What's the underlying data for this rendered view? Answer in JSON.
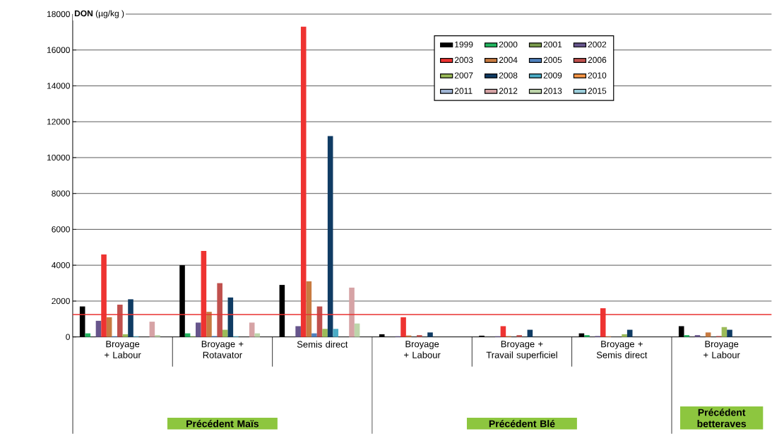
{
  "chart_data": {
    "type": "bar",
    "ylabel": "**DON** (µg/kg )",
    "categories": [
      "Broyage + Labour",
      "Broyage + Rotavator",
      "Semis direct",
      "Broyage + Labour",
      "Broyage + Travail superficiel",
      "Broyage + Semis direct",
      "Broyage + Labour"
    ],
    "annotations": [
      "Précédent Maïs",
      "Précédent Blé",
      "Précédent betteraves"
    ],
    "series": [
      {
        "name": "1999",
        "color": "#000000",
        "values": [
          1700,
          4000,
          2900,
          150,
          70,
          200,
          600
        ]
      },
      {
        "name": "2000",
        "color": "#22b35e",
        "values": [
          200,
          200,
          0,
          0,
          0,
          100,
          100
        ]
      },
      {
        "name": "2001",
        "color": "#77984a",
        "values": [
          0,
          40,
          0,
          0,
          0,
          0,
          0
        ]
      },
      {
        "name": "2002",
        "color": "#67558c",
        "values": [
          900,
          800,
          600,
          40,
          40,
          50,
          100
        ]
      },
      {
        "name": "2003",
        "color": "#ee3331",
        "values": [
          4600,
          4800,
          17300,
          1100,
          600,
          1600,
          0
        ]
      },
      {
        "name": "2004",
        "color": "#c87b41",
        "values": [
          1100,
          1400,
          3100,
          80,
          50,
          40,
          250
        ]
      },
      {
        "name": "2005",
        "color": "#4f81bd",
        "values": [
          40,
          50,
          200,
          0,
          0,
          0,
          0
        ]
      },
      {
        "name": "2006",
        "color": "#c0504d",
        "values": [
          1800,
          3000,
          1700,
          100,
          100,
          0,
          50
        ]
      },
      {
        "name": "2007",
        "color": "#9bbb59",
        "values": [
          150,
          400,
          450,
          0,
          0,
          150,
          550
        ]
      },
      {
        "name": "2008",
        "color": "#0f3b63",
        "values": [
          2100,
          2200,
          11200,
          250,
          400,
          400,
          400
        ]
      },
      {
        "name": "2009",
        "color": "#4bacc6",
        "values": [
          40,
          40,
          450,
          0,
          0,
          0,
          0
        ]
      },
      {
        "name": "2010",
        "color": "#f79646",
        "values": [
          0,
          0,
          0,
          0,
          0,
          0,
          0
        ]
      },
      {
        "name": "2011",
        "color": "#9fb5d4",
        "values": [
          0,
          0,
          0,
          0,
          0,
          0,
          0
        ]
      },
      {
        "name": "2012",
        "color": "#d6a3a5",
        "values": [
          850,
          800,
          2750,
          0,
          0,
          0,
          0
        ]
      },
      {
        "name": "2013",
        "color": "#bdd5aa",
        "values": [
          100,
          200,
          750,
          0,
          0,
          0,
          0
        ]
      },
      {
        "name": "2015",
        "color": "#9ccfdc",
        "values": [
          0,
          0,
          0,
          0,
          0,
          0,
          0
        ]
      }
    ],
    "ylim": [
      0,
      18000
    ],
    "yticks": [
      0,
      2000,
      4000,
      6000,
      8000,
      10000,
      12000,
      14000,
      16000,
      18000
    ],
    "ref_lines": [
      {
        "axis": "y",
        "value": 1250,
        "color": "#e8312f"
      }
    ],
    "grid": "y",
    "legend": "top right"
  }
}
